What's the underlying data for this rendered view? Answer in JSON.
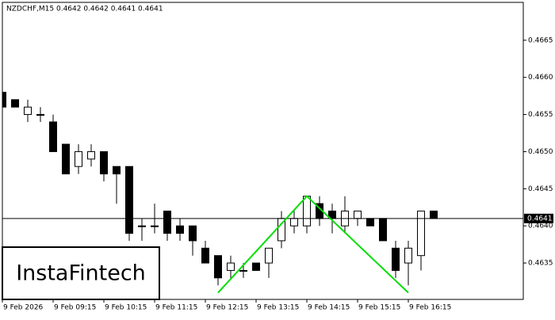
{
  "chart_data": {
    "type": "candlestick",
    "title": "NZDCHF,M15  0.4642 0.4642 0.4641 0.4641",
    "watermark": "InstaFintech",
    "categories": [
      "9 Feb 2026",
      null,
      null,
      null,
      "9 Feb 09:15",
      null,
      null,
      null,
      "9 Feb 10:15",
      null,
      null,
      null,
      "9 Feb 11:15",
      null,
      null,
      null,
      "9 Feb 12:15",
      null,
      null,
      null,
      "9 Feb 13:15",
      null,
      null,
      null,
      "9 Feb 14:15",
      null,
      null,
      null,
      "9 Feb 15:15",
      null,
      null,
      null,
      "9 Feb 16:15",
      null,
      null
    ],
    "open": [
      0.4658,
      0.4657,
      0.4655,
      0.4655,
      0.4654,
      0.4651,
      0.4648,
      0.4649,
      0.465,
      0.4648,
      0.4648,
      0.464,
      0.464,
      0.4642,
      0.464,
      0.464,
      0.4637,
      0.4636,
      0.4634,
      0.4634,
      0.4635,
      0.4635,
      0.4638,
      0.464,
      0.464,
      0.4643,
      0.4642,
      0.464,
      0.4641,
      0.4641,
      0.4641,
      0.4637,
      0.4635,
      0.4636,
      0.4642
    ],
    "high": [
      0.4659,
      0.4657,
      0.4657,
      0.4656,
      0.4655,
      0.4651,
      0.4651,
      0.4651,
      0.465,
      0.4648,
      0.4648,
      0.4641,
      0.4643,
      0.4642,
      0.4641,
      0.464,
      0.4638,
      0.4636,
      0.4636,
      0.4635,
      0.4635,
      0.4637,
      0.4642,
      0.4642,
      0.4644,
      0.4644,
      0.4643,
      0.4644,
      0.4642,
      0.4641,
      0.4641,
      0.4638,
      0.4638,
      0.4642,
      0.4642
    ],
    "low": [
      0.4653,
      0.4656,
      0.4654,
      0.4654,
      0.465,
      0.4647,
      0.4647,
      0.4648,
      0.4646,
      0.4643,
      0.4638,
      0.4638,
      0.4639,
      0.4638,
      0.4638,
      0.4636,
      0.4635,
      0.4632,
      0.4633,
      0.4633,
      0.4634,
      0.4633,
      0.4637,
      0.4639,
      0.4639,
      0.464,
      0.4639,
      0.4639,
      0.464,
      0.464,
      0.4638,
      0.4633,
      0.4632,
      0.4634,
      0.4641
    ],
    "close": [
      0.4656,
      0.4656,
      0.4656,
      0.4655,
      0.465,
      0.4647,
      0.465,
      0.465,
      0.4647,
      0.4647,
      0.4639,
      0.464,
      0.464,
      0.4639,
      0.4639,
      0.4638,
      0.4635,
      0.4633,
      0.4635,
      0.4634,
      0.4634,
      0.4637,
      0.4641,
      0.4641,
      0.4644,
      0.4641,
      0.4641,
      0.4642,
      0.4642,
      0.464,
      0.4638,
      0.4634,
      0.4637,
      0.4642,
      0.4641
    ],
    "up_color": "#ffffff",
    "down_color": "#000000",
    "last_price": 0.4641,
    "pattern": {
      "color": "#00dd00",
      "x": [
        17,
        24,
        32
      ],
      "y": [
        0.4631,
        0.4644,
        0.4631
      ]
    },
    "ylim": [
      0.46301,
      0.46701
    ],
    "yticks": [
      0.4635,
      {
        "value": 0.464,
        "label": "0.4640"
      },
      0.4645,
      {
        "value": 0.465,
        "label": "0.4650"
      },
      0.4655,
      {
        "value": 0.466,
        "label": "0.4660"
      },
      0.4665
    ]
  }
}
